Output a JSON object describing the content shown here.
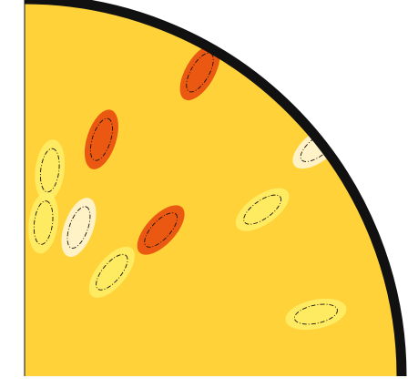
{
  "chart_data": {
    "type": "heatmap",
    "geometry": "quarter-disk",
    "colormap": [
      "#fff8e0",
      "#fff06a",
      "#ffd23a",
      "#ffa21f",
      "#ff7218",
      "#e8430c",
      "#a0180a",
      "#1a0000"
    ],
    "contour_style": "dash-dot",
    "background_color": "#ffffff",
    "outline_color": "#111111",
    "title": "",
    "xlabel": "",
    "ylabel": "",
    "colorbar": false,
    "features": [
      {
        "r": 0.93,
        "theta": 60,
        "value": 0.65,
        "kind": "local max"
      },
      {
        "r": 0.66,
        "theta": 72,
        "value": 0.74,
        "kind": "local max"
      },
      {
        "r": 0.53,
        "theta": 47,
        "value": 0.65,
        "kind": "local max"
      },
      {
        "r": 0.42,
        "theta": 70,
        "value": 0.04,
        "kind": "local min"
      },
      {
        "r": 0.55,
        "theta": 83,
        "value": 0.12,
        "kind": "local min"
      },
      {
        "r": 0.41,
        "theta": 83,
        "value": 0.2,
        "kind": "local min"
      },
      {
        "r": 0.36,
        "theta": 50,
        "value": 0.18,
        "kind": "local min"
      },
      {
        "r": 0.77,
        "theta": 35,
        "value": 0.2,
        "kind": "local min"
      },
      {
        "r": 0.79,
        "theta": 12,
        "value": 0.08,
        "kind": "local min"
      },
      {
        "r": 0.99,
        "theta": 38,
        "value": 0.02,
        "kind": "local min"
      }
    ]
  }
}
